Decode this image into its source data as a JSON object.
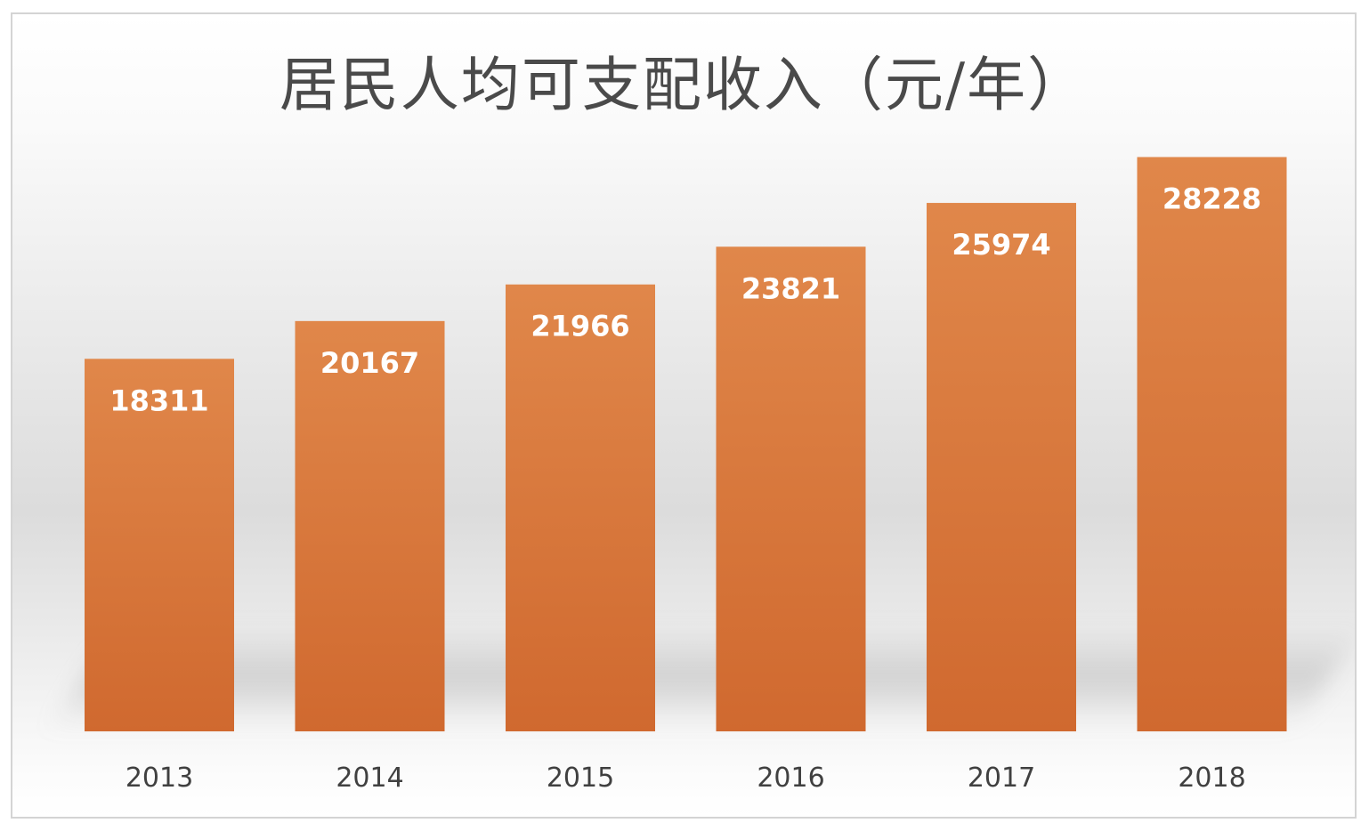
{
  "chart_data": {
    "type": "bar",
    "title": "居民人均可支配收入（元/年）",
    "categories": [
      "2013",
      "2014",
      "2015",
      "2016",
      "2017",
      "2018"
    ],
    "values": [
      18311,
      20167,
      21966,
      23821,
      25974,
      28228
    ],
    "xlabel": "",
    "ylabel": "",
    "ylim": [
      0,
      30000
    ],
    "grid": false,
    "legend": "none",
    "data_labels": true,
    "colors": {
      "bar_top": "#e0874a",
      "bar_bottom": "#d0692f",
      "data_label": "#ffffff",
      "tick_label": "#404040",
      "title": "#4a4a4a"
    }
  }
}
